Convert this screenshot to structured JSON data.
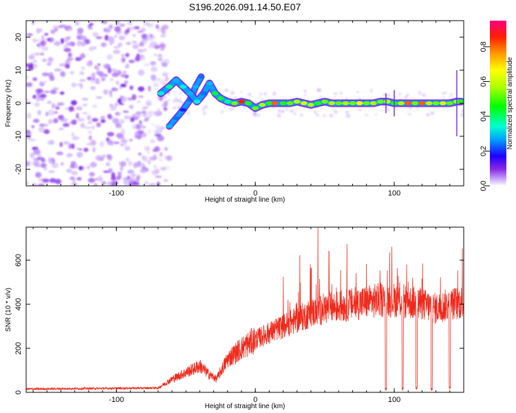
{
  "title": "S196.2026.091.14.50.E07",
  "chart_data": [
    {
      "type": "heatmap",
      "xlabel": "Height of straight line (km)",
      "ylabel": "Frequency (Hz)",
      "xlim": [
        -165,
        150
      ],
      "ylim": [
        -25,
        25
      ],
      "xticks": [
        -100,
        0,
        100
      ],
      "xtick_labels": [
        "-100",
        "0",
        "100"
      ],
      "yticks": [
        -20,
        -10,
        0,
        10,
        20
      ],
      "ytick_labels": [
        "-20",
        "-10",
        "0",
        "10",
        "20"
      ],
      "colorbar": {
        "label": "Normalized spectral amplitude",
        "range": [
          0.0,
          0.95
        ],
        "ticks": [
          0.0,
          0.2,
          0.4,
          0.6,
          0.8
        ],
        "tick_labels": [
          "0.0",
          "0.2",
          "0.4",
          "0.6",
          "0.8"
        ]
      },
      "noise_region": {
        "x_range": [
          -165,
          -70
        ],
        "freq_range": [
          -25,
          25
        ],
        "amplitude_range": [
          0.0,
          0.15
        ]
      },
      "signal_track": [
        {
          "x": -68,
          "freq": 3.0,
          "amplitude": 0.35
        },
        {
          "x": -62,
          "freq": 5.0,
          "amplitude": 0.4
        },
        {
          "x": -57,
          "freq": 7.0,
          "amplitude": 0.3
        },
        {
          "x": -52,
          "freq": 5.0,
          "amplitude": 0.35
        },
        {
          "x": -47,
          "freq": 3.0,
          "amplitude": 0.3
        },
        {
          "x": -42,
          "freq": 0.5,
          "amplitude": 0.35
        },
        {
          "x": -37,
          "freq": 3.0,
          "amplitude": 0.25
        },
        {
          "x": -33,
          "freq": 6.0,
          "amplitude": 0.3
        },
        {
          "x": -29,
          "freq": 3.0,
          "amplitude": 0.45
        },
        {
          "x": -25,
          "freq": 1.5,
          "amplitude": 0.45
        },
        {
          "x": -20,
          "freq": 0.5,
          "amplitude": 0.4
        },
        {
          "x": -15,
          "freq": 0.0,
          "amplitude": 0.55
        },
        {
          "x": -10,
          "freq": 0.5,
          "amplitude": 0.9
        },
        {
          "x": -5,
          "freq": 0.0,
          "amplitude": 0.5
        },
        {
          "x": 0,
          "freq": -1.5,
          "amplitude": 0.55
        },
        {
          "x": 5,
          "freq": -0.5,
          "amplitude": 0.6
        },
        {
          "x": 10,
          "freq": 0.0,
          "amplitude": 0.5
        },
        {
          "x": 14,
          "freq": 0.0,
          "amplitude": 0.85
        },
        {
          "x": 20,
          "freq": 0.0,
          "amplitude": 0.5
        },
        {
          "x": 25,
          "freq": 0.0,
          "amplitude": 0.55
        },
        {
          "x": 30,
          "freq": 0.5,
          "amplitude": 0.6
        },
        {
          "x": 35,
          "freq": 0.0,
          "amplitude": 0.65
        },
        {
          "x": 40,
          "freq": -0.5,
          "amplitude": 0.6
        },
        {
          "x": 45,
          "freq": 0.0,
          "amplitude": 0.5
        },
        {
          "x": 50,
          "freq": 0.5,
          "amplitude": 0.55
        },
        {
          "x": 55,
          "freq": 0.0,
          "amplitude": 0.6
        },
        {
          "x": 60,
          "freq": 0.0,
          "amplitude": 0.55
        },
        {
          "x": 65,
          "freq": 0.0,
          "amplitude": 0.6
        },
        {
          "x": 70,
          "freq": 0.0,
          "amplitude": 0.55
        },
        {
          "x": 75,
          "freq": 0.0,
          "amplitude": 0.7
        },
        {
          "x": 80,
          "freq": 0.0,
          "amplitude": 0.55
        },
        {
          "x": 85,
          "freq": 0.0,
          "amplitude": 0.6
        },
        {
          "x": 90,
          "freq": 0.5,
          "amplitude": 0.55
        },
        {
          "x": 95,
          "freq": 0.5,
          "amplitude": 0.6
        },
        {
          "x": 100,
          "freq": 0.0,
          "amplitude": 0.5
        },
        {
          "x": 105,
          "freq": 0.0,
          "amplitude": 0.6
        },
        {
          "x": 110,
          "freq": 0.0,
          "amplitude": 0.85
        },
        {
          "x": 115,
          "freq": 0.0,
          "amplitude": 0.55
        },
        {
          "x": 120,
          "freq": 0.0,
          "amplitude": 0.85
        },
        {
          "x": 125,
          "freq": 0.0,
          "amplitude": 0.6
        },
        {
          "x": 130,
          "freq": 0.0,
          "amplitude": 0.55
        },
        {
          "x": 135,
          "freq": 0.0,
          "amplitude": 0.65
        },
        {
          "x": 140,
          "freq": 0.0,
          "amplitude": 0.55
        },
        {
          "x": 145,
          "freq": 0.5,
          "amplitude": 0.6
        },
        {
          "x": 148,
          "freq": 0.5,
          "amplitude": 0.5
        }
      ],
      "secondary_track": [
        {
          "x": -62,
          "freq": -7.0,
          "amplitude": 0.3
        },
        {
          "x": -57,
          "freq": -4.5,
          "amplitude": 0.25
        },
        {
          "x": -52,
          "freq": -2.0,
          "amplitude": 0.2
        },
        {
          "x": -47,
          "freq": 1.0,
          "amplitude": 0.25
        },
        {
          "x": -43,
          "freq": 5.0,
          "amplitude": 0.3
        },
        {
          "x": -39,
          "freq": 8.0,
          "amplitude": 0.25
        }
      ]
    },
    {
      "type": "line",
      "xlabel": "Height of straight line (km)",
      "ylabel": "SNR (10 * v/v)",
      "xlim": [
        -165,
        150
      ],
      "ylim": [
        0,
        750
      ],
      "xticks": [
        -100,
        0,
        100
      ],
      "xtick_labels": [
        "-100",
        "0",
        "100"
      ],
      "yticks": [
        0,
        200,
        400,
        600
      ],
      "ytick_labels": [
        "0",
        "200",
        "400",
        "600"
      ],
      "color": "#ee2a1c",
      "trend": [
        {
          "x": -165,
          "snr": 15
        },
        {
          "x": -70,
          "snr": 20
        },
        {
          "x": -60,
          "snr": 60
        },
        {
          "x": -50,
          "snr": 90
        },
        {
          "x": -40,
          "snr": 120
        },
        {
          "x": -33,
          "snr": 80
        },
        {
          "x": -28,
          "snr": 60
        },
        {
          "x": -20,
          "snr": 150
        },
        {
          "x": -10,
          "snr": 200
        },
        {
          "x": 0,
          "snr": 240
        },
        {
          "x": 10,
          "snr": 270
        },
        {
          "x": 20,
          "snr": 300
        },
        {
          "x": 30,
          "snr": 330
        },
        {
          "x": 40,
          "snr": 360
        },
        {
          "x": 50,
          "snr": 380
        },
        {
          "x": 60,
          "snr": 390
        },
        {
          "x": 70,
          "snr": 400
        },
        {
          "x": 80,
          "snr": 410
        },
        {
          "x": 90,
          "snr": 420
        },
        {
          "x": 100,
          "snr": 420
        },
        {
          "x": 110,
          "snr": 410
        },
        {
          "x": 120,
          "snr": 400
        },
        {
          "x": 130,
          "snr": 380
        },
        {
          "x": 140,
          "snr": 400
        },
        {
          "x": 150,
          "snr": 410
        }
      ],
      "peaks": [
        {
          "x": 32,
          "snr": 620
        },
        {
          "x": 40,
          "snr": 560
        },
        {
          "x": 45,
          "snr": 750
        },
        {
          "x": 53,
          "snr": 640
        },
        {
          "x": 66,
          "snr": 670
        },
        {
          "x": 80,
          "snr": 580
        },
        {
          "x": 95,
          "snr": 550
        },
        {
          "x": 110,
          "snr": 500
        },
        {
          "x": 118,
          "snr": 460
        }
      ],
      "dropouts": [
        {
          "x": 94,
          "snr": 10
        },
        {
          "x": 106,
          "snr": 10
        },
        {
          "x": 116,
          "snr": 15
        },
        {
          "x": 127,
          "snr": 10
        },
        {
          "x": 140,
          "snr": 15
        }
      ]
    }
  ]
}
